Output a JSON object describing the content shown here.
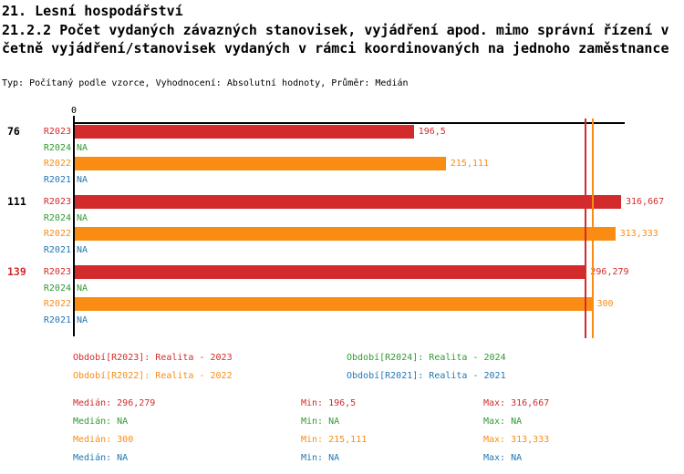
{
  "title": {
    "line1": "21. Lesní hospodářství",
    "line2": "21.2.2 Počet vydaných závazných stanovisek, vyjádření apod. mimo správní řízení v",
    "line3": "četně vyjádření/stanovisek vydaných v rámci koordinovaných na jednoho zaměstnance",
    "meta": "Typ: Počítaný podle vzorce, Vyhodnocení: Absolutní hodnoty, Průměr: Medián"
  },
  "colors": {
    "default": "#000000",
    "r2023": "#d32b2b",
    "r2024": "#2e9b31",
    "r2022": "#fa8c14",
    "r2021": "#1f77b4"
  },
  "chart_data": {
    "type": "bar",
    "orientation": "horizontal",
    "title": "21.2.2 Počet vydaných závazných stanovisek, vyjádření apod. mimo správní řízení včetně vyjádření/stanovisek vydaných v rámci koordinovaných na jednoho zaměstnance",
    "meta": "Typ: Počítaný podle vzorce, Vyhodnocení: Absolutní hodnoty, Průměr: Medián",
    "x_axis": {
      "zero_label": "0",
      "min": 0,
      "approx_max": 320,
      "grid": false
    },
    "na_label": "NA",
    "series_order": [
      "R2023",
      "R2024",
      "R2022",
      "R2021"
    ],
    "groups": [
      {
        "label": "76",
        "label_color_key": "default",
        "rows": [
          {
            "series": "R2023",
            "value": 196.5,
            "display": "196,5",
            "color_key": "r2023"
          },
          {
            "series": "R2024",
            "value": null,
            "display": "NA",
            "color_key": "r2024"
          },
          {
            "series": "R2022",
            "value": 215.111,
            "display": "215,111",
            "color_key": "r2022"
          },
          {
            "series": "R2021",
            "value": null,
            "display": "NA",
            "color_key": "r2021"
          }
        ]
      },
      {
        "label": "111",
        "label_color_key": "default",
        "rows": [
          {
            "series": "R2023",
            "value": 316.667,
            "display": "316,667",
            "color_key": "r2023"
          },
          {
            "series": "R2024",
            "value": null,
            "display": "NA",
            "color_key": "r2024"
          },
          {
            "series": "R2022",
            "value": 313.333,
            "display": "313,333",
            "color_key": "r2022"
          },
          {
            "series": "R2021",
            "value": null,
            "display": "NA",
            "color_key": "r2021"
          }
        ]
      },
      {
        "label": "139",
        "label_color_key": "r2023",
        "rows": [
          {
            "series": "R2023",
            "value": 296.279,
            "display": "296,279",
            "color_key": "r2023"
          },
          {
            "series": "R2024",
            "value": null,
            "display": "NA",
            "color_key": "r2024"
          },
          {
            "series": "R2022",
            "value": 300,
            "display": "300",
            "color_key": "r2022"
          },
          {
            "series": "R2021",
            "value": null,
            "display": "NA",
            "color_key": "r2021"
          }
        ]
      }
    ],
    "median_lines": [
      {
        "series": "R2023",
        "value": 296.279,
        "color_key": "r2023"
      },
      {
        "series": "R2022",
        "value": 300,
        "color_key": "r2022"
      }
    ]
  },
  "legend": {
    "items": [
      {
        "text": "Období[R2023]: Realita - 2023",
        "color_key": "r2023",
        "col": 0,
        "row": 0
      },
      {
        "text": "Období[R2024]: Realita - 2024",
        "color_key": "r2024",
        "col": 1,
        "row": 0
      },
      {
        "text": "Období[R2022]: Realita - 2022",
        "color_key": "r2022",
        "col": 0,
        "row": 1
      },
      {
        "text": "Období[R2021]: Realita - 2021",
        "color_key": "r2021",
        "col": 1,
        "row": 1
      }
    ]
  },
  "stats": {
    "labels": {
      "median": "Medián:",
      "min": "Min:",
      "max": "Max:"
    },
    "rows": [
      {
        "color_key": "r2023",
        "median": "296,279",
        "min": "196,5",
        "max": "316,667"
      },
      {
        "color_key": "r2024",
        "median": "NA",
        "min": "NA",
        "max": "NA"
      },
      {
        "color_key": "r2022",
        "median": "300",
        "min": "215,111",
        "max": "313,333"
      },
      {
        "color_key": "r2021",
        "median": "NA",
        "min": "NA",
        "max": "NA"
      }
    ]
  }
}
